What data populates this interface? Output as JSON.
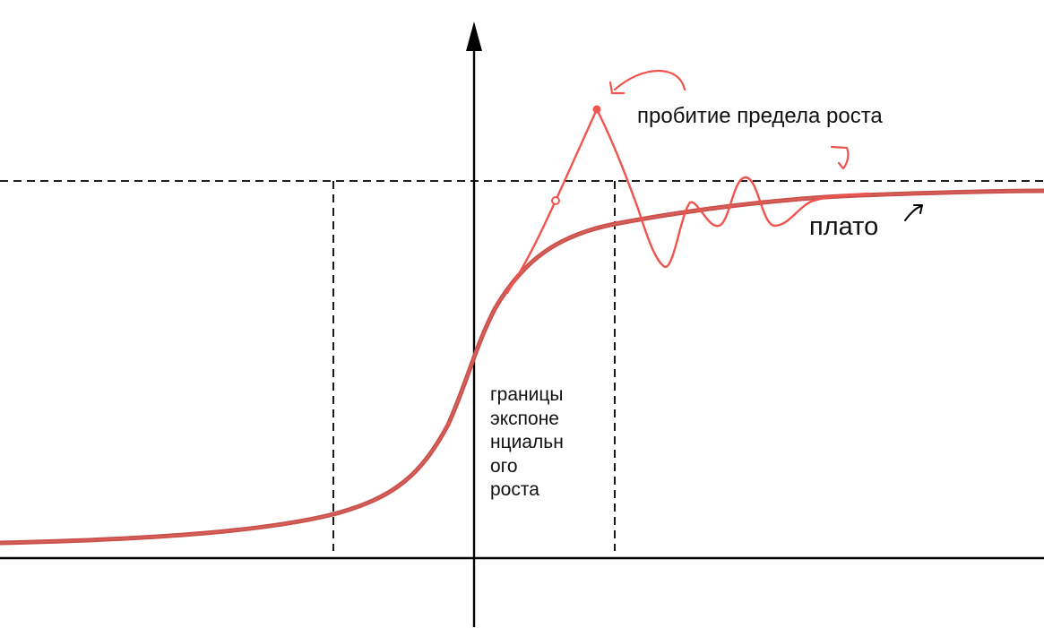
{
  "diagram": {
    "labels": {
      "breakout": "пробитие предела роста",
      "plateau": "плато",
      "exponential_bounds": [
        "границы",
        "экспоне",
        "нциальн",
        "ого",
        "роста"
      ]
    },
    "colors": {
      "curve": "#c9504b",
      "overshoot": "#f0544f",
      "axes": "#000000",
      "guides": "#000000",
      "text": "#111111"
    },
    "icons": {
      "curved_arrow": "curved-arrow-icon",
      "small_bracket": "small-bracket-mark-icon",
      "plateau_arrow": "small-arrow-icon"
    }
  }
}
